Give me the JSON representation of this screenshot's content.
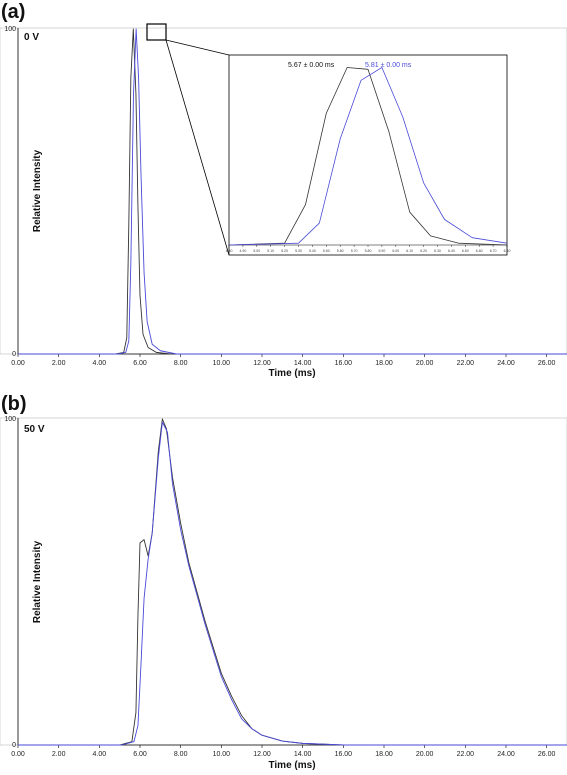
{
  "colors": {
    "series_black": "#333333",
    "series_blue": "#4a4ad8",
    "axis": "#000000"
  },
  "chart_data": [
    {
      "type": "line",
      "panel_label": "(a)",
      "condition": "0 V",
      "xlabel": "Time (ms)",
      "ylabel": "Relative Intensity",
      "xlim": [
        0,
        27
      ],
      "ylim": [
        0,
        100
      ],
      "x_ticks": [
        "0.00",
        "2.00",
        "4.00",
        "6.00",
        "8.00",
        "10.00",
        "12.00",
        "14.00",
        "16.00",
        "18.00",
        "20.00",
        "22.00",
        "24.00",
        "26.00"
      ],
      "y_ticks": [
        "0",
        "100"
      ],
      "series": [
        {
          "color": "#333333",
          "points": [
            [
              0,
              0
            ],
            [
              4.8,
              0
            ],
            [
              5.2,
              0.5
            ],
            [
              5.35,
              5
            ],
            [
              5.45,
              40
            ],
            [
              5.55,
              85
            ],
            [
              5.67,
              100
            ],
            [
              5.8,
              80
            ],
            [
              5.9,
              45
            ],
            [
              6.0,
              18
            ],
            [
              6.15,
              6
            ],
            [
              6.4,
              2
            ],
            [
              6.8,
              0.5
            ],
            [
              7.5,
              0
            ],
            [
              27,
              0
            ]
          ]
        },
        {
          "color": "#4a4ad8",
          "points": [
            [
              0,
              0
            ],
            [
              4.9,
              0
            ],
            [
              5.3,
              0.5
            ],
            [
              5.45,
              4
            ],
            [
              5.55,
              28
            ],
            [
              5.68,
              80
            ],
            [
              5.81,
              100
            ],
            [
              5.93,
              85
            ],
            [
              6.05,
              55
            ],
            [
              6.2,
              25
            ],
            [
              6.35,
              10
            ],
            [
              6.6,
              3
            ],
            [
              7.0,
              1
            ],
            [
              7.8,
              0
            ],
            [
              27,
              0
            ]
          ]
        }
      ],
      "inset": {
        "annotations": [
          {
            "text": "5.67 ± 0.00 ms",
            "color": "#111111"
          },
          {
            "text": "5.81 ± 0.00 ms",
            "color": "#4a4ad8"
          }
        ],
        "x_ticks": [
          "4.80",
          "4.90",
          "5.00",
          "5.10",
          "5.20",
          "5.30",
          "5.40",
          "5.50",
          "5.60",
          "5.70",
          "5.80",
          "5.90",
          "6.00",
          "6.10",
          "6.20",
          "6.30",
          "6.40",
          "6.50",
          "6.60",
          "6.70",
          "6.80"
        ],
        "xlim": [
          4.8,
          6.8
        ],
        "ylim": [
          0,
          100
        ],
        "series": [
          {
            "color": "#333333",
            "points": [
              [
                4.8,
                0
              ],
              [
                5.2,
                1
              ],
              [
                5.35,
                22
              ],
              [
                5.5,
                72
              ],
              [
                5.65,
                97
              ],
              [
                5.8,
                96
              ],
              [
                5.95,
                62
              ],
              [
                6.1,
                18
              ],
              [
                6.25,
                5
              ],
              [
                6.45,
                1
              ],
              [
                6.8,
                0
              ]
            ]
          },
          {
            "color": "#4a4ad8",
            "points": [
              [
                4.8,
                0
              ],
              [
                5.3,
                1
              ],
              [
                5.45,
                12
              ],
              [
                5.6,
                58
              ],
              [
                5.75,
                90
              ],
              [
                5.9,
                97
              ],
              [
                6.05,
                70
              ],
              [
                6.2,
                34
              ],
              [
                6.35,
                14
              ],
              [
                6.55,
                4
              ],
              [
                6.8,
                1
              ]
            ]
          }
        ]
      }
    },
    {
      "type": "line",
      "panel_label": "(b)",
      "condition": "50 V",
      "xlabel": "Time (ms)",
      "ylabel": "Relative Intensity",
      "xlim": [
        0,
        27
      ],
      "ylim": [
        0,
        100
      ],
      "x_ticks": [
        "0.00",
        "2.00",
        "4.00",
        "6.00",
        "8.00",
        "10.00",
        "12.00",
        "14.00",
        "16.00",
        "18.00",
        "20.00",
        "22.00",
        "24.00",
        "26.00"
      ],
      "y_ticks": [
        "0",
        "100"
      ],
      "series": [
        {
          "color": "#333333",
          "points": [
            [
              0,
              0
            ],
            [
              5.0,
              0
            ],
            [
              5.6,
              1
            ],
            [
              5.8,
              10
            ],
            [
              5.9,
              40
            ],
            [
              6.0,
              62
            ],
            [
              6.2,
              63
            ],
            [
              6.4,
              58
            ],
            [
              6.6,
              65
            ],
            [
              6.9,
              90
            ],
            [
              7.1,
              100
            ],
            [
              7.3,
              97
            ],
            [
              7.6,
              82
            ],
            [
              8.0,
              68
            ],
            [
              8.4,
              56
            ],
            [
              8.8,
              47
            ],
            [
              9.2,
              38
            ],
            [
              9.6,
              30
            ],
            [
              10.0,
              22
            ],
            [
              10.5,
              15
            ],
            [
              11.0,
              9
            ],
            [
              11.5,
              5
            ],
            [
              12.0,
              3
            ],
            [
              13.0,
              1.2
            ],
            [
              14.0,
              0.5
            ],
            [
              16.0,
              0
            ],
            [
              27,
              0
            ]
          ]
        },
        {
          "color": "#4a4ad8",
          "points": [
            [
              0,
              0
            ],
            [
              5.1,
              0
            ],
            [
              5.7,
              1
            ],
            [
              5.9,
              6
            ],
            [
              6.05,
              25
            ],
            [
              6.2,
              45
            ],
            [
              6.4,
              57
            ],
            [
              6.6,
              65
            ],
            [
              6.9,
              88
            ],
            [
              7.1,
              99
            ],
            [
              7.35,
              96
            ],
            [
              7.6,
              80
            ],
            [
              8.0,
              66
            ],
            [
              8.4,
              55
            ],
            [
              8.8,
              46
            ],
            [
              9.2,
              37
            ],
            [
              9.6,
              29
            ],
            [
              10.0,
              21
            ],
            [
              10.5,
              14
            ],
            [
              11.0,
              8
            ],
            [
              11.5,
              5
            ],
            [
              12.0,
              3
            ],
            [
              13.0,
              1.2
            ],
            [
              14.0,
              0.5
            ],
            [
              16.0,
              0
            ],
            [
              27,
              0
            ]
          ]
        }
      ]
    }
  ]
}
